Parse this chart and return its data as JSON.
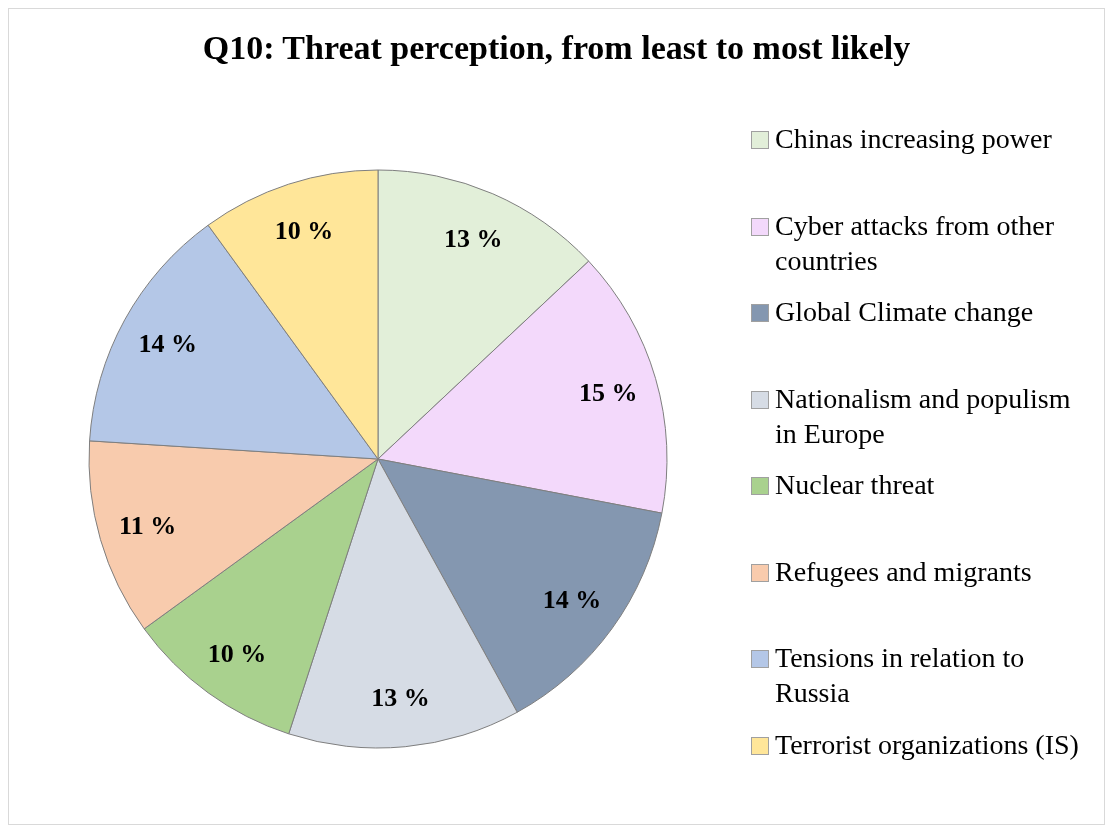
{
  "chart_data": {
    "type": "pie",
    "title": "Q10: Threat perception, from least to most likely",
    "categories": [
      "Chinas increasing power",
      "Cyber attacks from other countries",
      "Global Climate change",
      "Nationalism and populism in Europe",
      "Nuclear threat",
      "Refugees and migrants",
      "Tensions in relation to Russia",
      "Terrorist organizations (IS)"
    ],
    "values": [
      13,
      15,
      14,
      13,
      10,
      11,
      14,
      10
    ],
    "value_labels": [
      "13 %",
      "15 %",
      "14 %",
      "13 %",
      "10 %",
      "11 %",
      "14 %",
      "10 %"
    ],
    "colors": [
      "#e2efd9",
      "#f3d9fb",
      "#8497b0",
      "#d6dce5",
      "#a9d18e",
      "#f8cbad",
      "#b4c7e7",
      "#ffe699"
    ],
    "legend": "right"
  }
}
